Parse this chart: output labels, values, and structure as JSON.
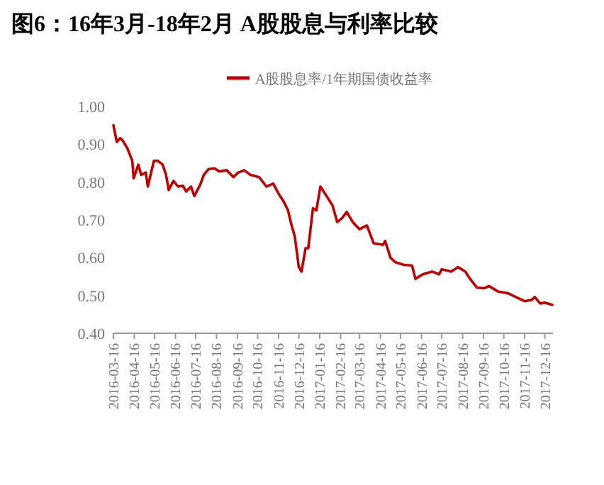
{
  "chart_data": {
    "type": "line",
    "title": "图6：16年3月-18年2月 A股股息与利率比较",
    "legend": "top",
    "x": [
      "2016-03-16",
      "2016-03-21",
      "2016-03-26",
      "2016-03-30",
      "2016-04-06",
      "2016-04-13",
      "2016-04-15",
      "2016-04-22",
      "2016-04-26",
      "2016-05-03",
      "2016-05-06",
      "2016-05-15",
      "2016-05-21",
      "2016-05-28",
      "2016-06-02",
      "2016-06-06",
      "2016-06-13",
      "2016-06-20",
      "2016-06-27",
      "2016-07-02",
      "2016-07-09",
      "2016-07-14",
      "2016-07-23",
      "2016-07-28",
      "2016-08-04",
      "2016-08-13",
      "2016-08-20",
      "2016-08-31",
      "2016-09-10",
      "2016-09-17",
      "2016-09-26",
      "2016-10-05",
      "2016-10-18",
      "2016-10-29",
      "2016-11-08",
      "2016-11-16",
      "2016-11-23",
      "2016-11-30",
      "2016-12-04",
      "2016-12-10",
      "2016-12-16",
      "2016-12-20",
      "2016-12-26",
      "2016-12-30",
      "2017-01-06",
      "2017-01-11",
      "2017-01-17",
      "2017-01-24",
      "2017-02-04",
      "2017-02-11",
      "2017-02-18",
      "2017-02-25",
      "2017-03-06",
      "2017-03-16",
      "2017-03-22",
      "2017-03-27",
      "2017-04-06",
      "2017-04-20",
      "2017-04-23",
      "2017-05-01",
      "2017-05-08",
      "2017-05-21",
      "2017-06-02",
      "2017-06-07",
      "2017-06-18",
      "2017-07-02",
      "2017-07-12",
      "2017-07-16",
      "2017-07-30",
      "2017-08-09",
      "2017-08-20",
      "2017-08-27",
      "2017-09-06",
      "2017-09-17",
      "2017-09-24",
      "2017-10-08",
      "2017-10-22",
      "2017-11-05",
      "2017-11-16",
      "2017-11-26",
      "2017-12-01",
      "2017-12-09",
      "2017-12-16",
      "2017-12-27"
    ],
    "series": [
      {
        "name": "A股股息率/1年期国债收益率",
        "color": "#c00000",
        "values": [
          0.95,
          0.906,
          0.916,
          0.909,
          0.888,
          0.856,
          0.81,
          0.846,
          0.819,
          0.825,
          0.788,
          0.856,
          0.856,
          0.846,
          0.819,
          0.779,
          0.803,
          0.788,
          0.79,
          0.775,
          0.788,
          0.763,
          0.794,
          0.819,
          0.834,
          0.836,
          0.828,
          0.831,
          0.813,
          0.825,
          0.831,
          0.819,
          0.813,
          0.788,
          0.796,
          0.769,
          0.75,
          0.725,
          0.694,
          0.656,
          0.575,
          0.563,
          0.625,
          0.625,
          0.731,
          0.725,
          0.788,
          0.769,
          0.738,
          0.694,
          0.704,
          0.721,
          0.694,
          0.675,
          0.681,
          0.685,
          0.638,
          0.634,
          0.644,
          0.6,
          0.588,
          0.581,
          0.579,
          0.544,
          0.556,
          0.563,
          0.556,
          0.569,
          0.563,
          0.575,
          0.563,
          0.544,
          0.521,
          0.519,
          0.525,
          0.51,
          0.506,
          0.494,
          0.485,
          0.488,
          0.496,
          0.479,
          0.481,
          0.475
        ]
      }
    ],
    "xlim": [
      "2016-03-16",
      "2017-12-28"
    ],
    "xticks": [
      "2016-03-16",
      "2016-04-16",
      "2016-05-16",
      "2016-06-16",
      "2016-07-16",
      "2016-08-16",
      "2016-09-16",
      "2016-10-16",
      "2016-11-16",
      "2016-12-16",
      "2017-01-16",
      "2017-02-16",
      "2017-03-16",
      "2017-04-16",
      "2017-05-16",
      "2017-06-16",
      "2017-07-16",
      "2017-08-16",
      "2017-09-16",
      "2017-10-16",
      "2017-11-16",
      "2017-12-16"
    ],
    "ylim": [
      0.4,
      1.0
    ],
    "yticks": [
      {
        "value": 0.4,
        "label": "0.40"
      },
      {
        "value": 0.5,
        "label": "0.50"
      },
      {
        "value": 0.6,
        "label": "0.60"
      },
      {
        "value": 0.7,
        "label": "0.70"
      },
      {
        "value": 0.8,
        "label": "0.80"
      },
      {
        "value": 0.9,
        "label": "0.90"
      },
      {
        "value": 1.0,
        "label": "1.00"
      }
    ],
    "grid": false,
    "marker": "none",
    "line_style": "solid"
  }
}
